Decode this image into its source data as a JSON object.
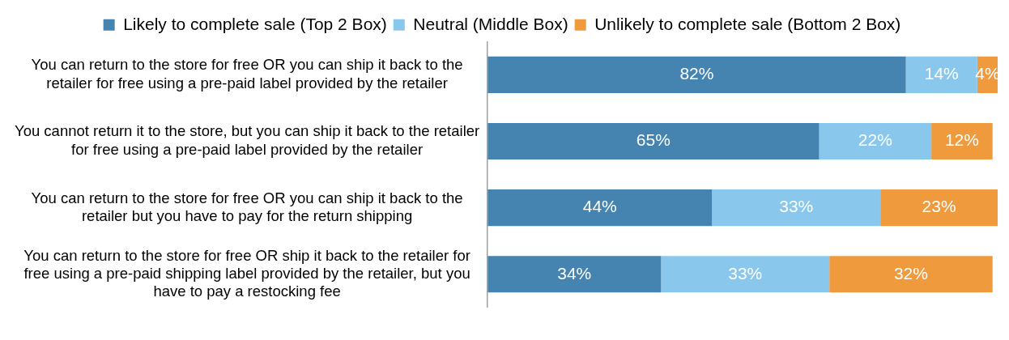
{
  "chart_data": {
    "type": "bar",
    "orientation": "horizontal",
    "stacked": true,
    "legend": "top",
    "categories": [
      "You can return to the store for free OR you can ship it back to the retailer for free using a pre-paid label provided by the retailer",
      "You cannot return it to the store, but you can ship it back to the retailer for free using a pre-paid label provided by the retailer",
      "You can return to the store for free OR you can ship it back to the retailer but you have to pay for the return shipping",
      "You can return to the store for free OR ship it back to the retailer for free using a pre-paid shipping label provided by the retailer, but you have to pay a restocking fee"
    ],
    "series": [
      {
        "name": "Likely to complete sale (Top 2 Box)",
        "color": "#4584b0",
        "values": [
          82,
          65,
          44,
          34
        ],
        "value_labels": [
          "82%",
          "65%",
          "44%",
          "34%"
        ]
      },
      {
        "name": "Neutral (Middle Box)",
        "color": "#89c8ec",
        "values": [
          14,
          22,
          33,
          33
        ],
        "value_labels": [
          "14%",
          "22%",
          "33%",
          "33%"
        ]
      },
      {
        "name": "Unlikely to complete sale (Bottom 2 Box)",
        "color": "#f09a3e",
        "values": [
          4,
          12,
          23,
          32
        ],
        "value_labels": [
          "4%",
          "12%",
          "23%",
          "32%"
        ]
      }
    ]
  }
}
